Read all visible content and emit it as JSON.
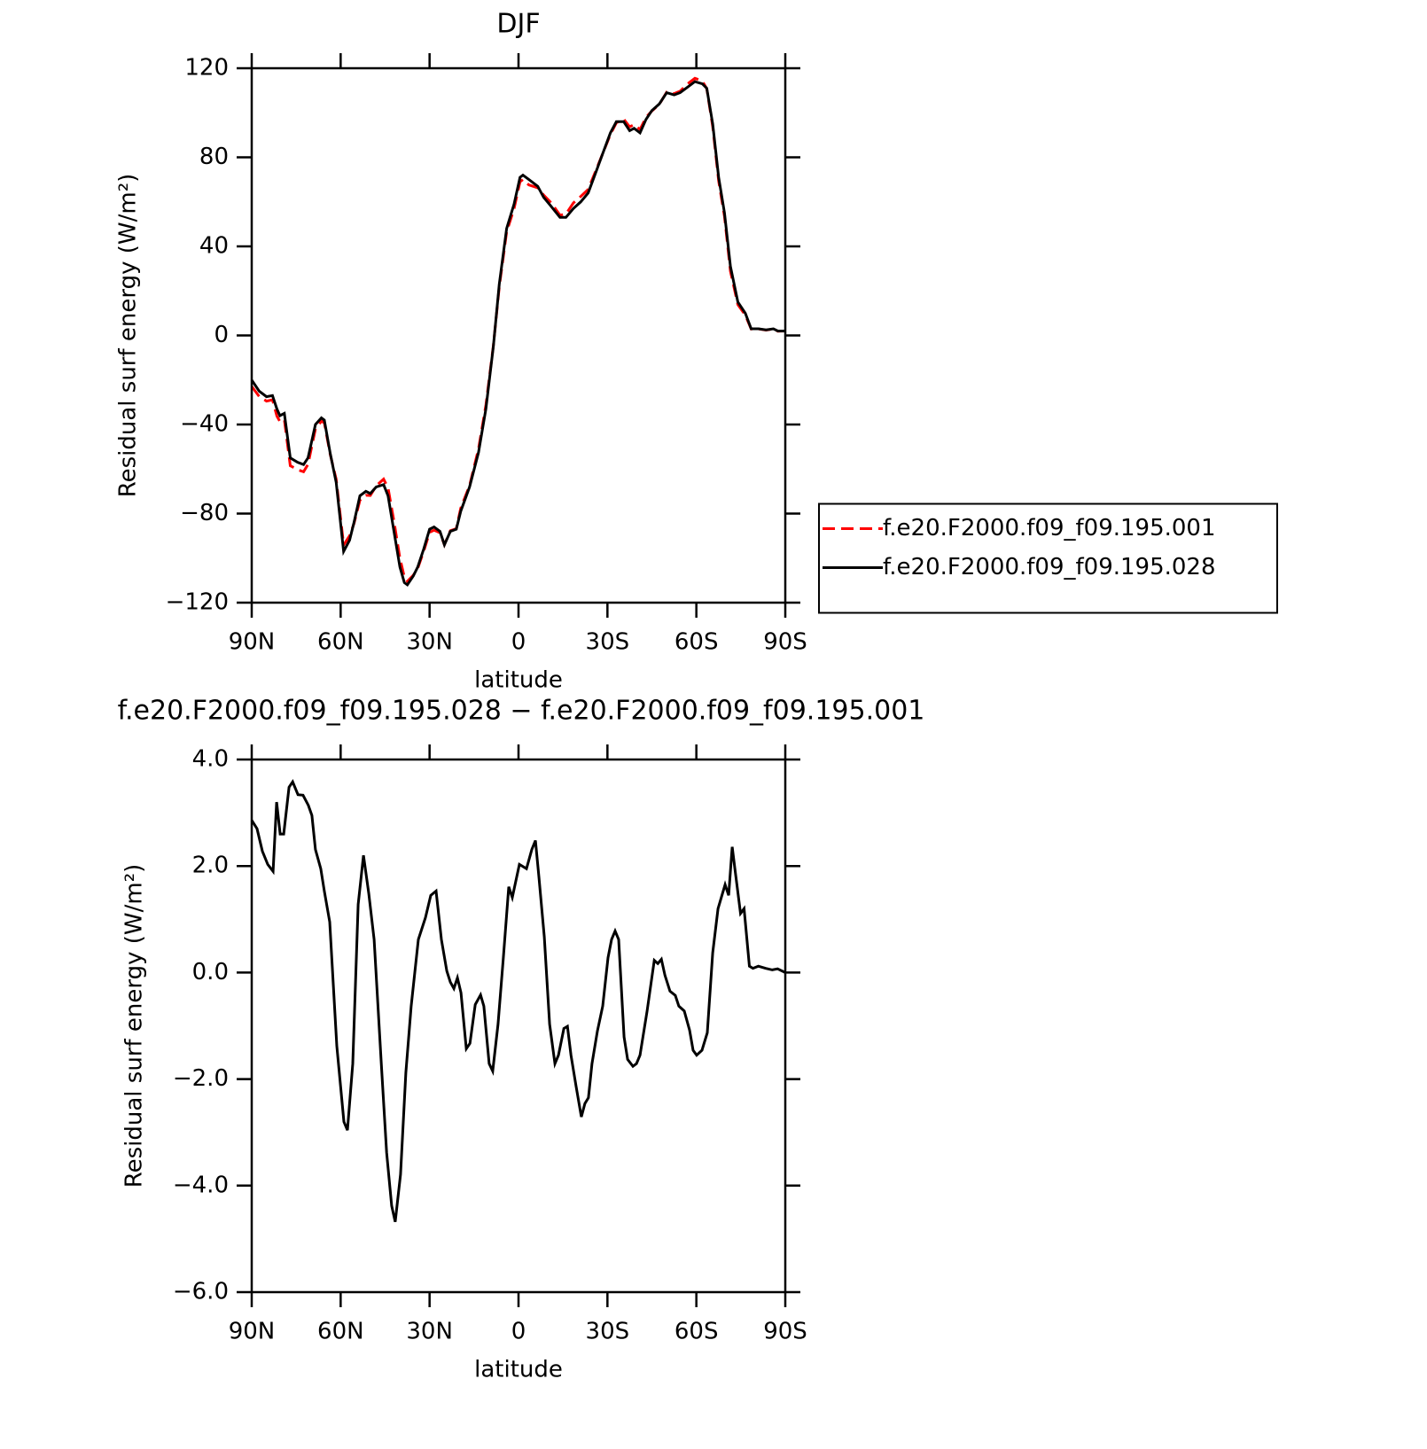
{
  "chart_data": [
    {
      "type": "line",
      "title": "DJF",
      "x_label": "latitude",
      "y_label": "Residual surf energy (W/m²)",
      "xlim": [
        90,
        -90
      ],
      "xticks": [
        {
          "value": 90,
          "label": "90N"
        },
        {
          "value": 60,
          "label": "60N"
        },
        {
          "value": 30,
          "label": "30N"
        },
        {
          "value": 0,
          "label": "0"
        },
        {
          "value": -30,
          "label": "30S"
        },
        {
          "value": -60,
          "label": "60S"
        },
        {
          "value": -90,
          "label": "90S"
        }
      ],
      "ylim": [
        -120,
        120
      ],
      "yticks": [
        {
          "value": -120,
          "label": "−120"
        },
        {
          "value": -80,
          "label": "−80"
        },
        {
          "value": -40,
          "label": "−40"
        },
        0,
        40,
        80,
        120
      ],
      "legend": "right",
      "x": [
        90,
        87.5,
        85,
        83,
        81.5,
        80.5,
        79,
        77,
        74.5,
        72.5,
        71,
        68.5,
        66.5,
        65.5,
        63.5,
        61.5,
        59,
        57,
        55.5,
        53.5,
        51.5,
        50,
        48,
        45.5,
        44,
        42,
        40,
        38.5,
        37.5,
        35.5,
        34,
        32,
        30,
        28.5,
        26.5,
        25,
        23,
        21,
        19.5,
        16.5,
        13.5,
        11,
        8.5,
        6.5,
        4,
        1.5,
        -0.5,
        -1.5,
        -3.5,
        -6.5,
        -8.5,
        -11,
        -14,
        -16,
        -18.5,
        -21,
        -23.5,
        -26,
        -28.5,
        -31,
        -33,
        -35.5,
        -37.5,
        -39,
        -41,
        -43,
        -45,
        -47.5,
        -50,
        -52.5,
        -54.5,
        -57,
        -59.5,
        -62,
        -63.5,
        -65.5,
        -67.5,
        -69.5,
        -71.5,
        -74,
        -76.5,
        -78.5,
        -81,
        -83.5,
        -86,
        -87.5,
        -90
      ],
      "series": [
        {
          "name": "f.e20.F2000.f09_f09.195.001",
          "color": "#ff0000",
          "dashed": true,
          "values": [
            -22.9,
            -27.4,
            -29.5,
            -28.9,
            -36.2,
            -38.6,
            -37.8,
            -58.5,
            -60.3,
            -61.2,
            -57.9,
            -42,
            -38.5,
            -39.2,
            -53.5,
            -64.6,
            -94.1,
            -90,
            -84.5,
            -74,
            -71.8,
            -71.9,
            -67.5,
            -64.5,
            -68.4,
            -83.5,
            -100,
            -108.5,
            -110.4,
            -107.7,
            -104.6,
            -97,
            -88.4,
            -87.5,
            -88.6,
            -94,
            -87.7,
            -86.8,
            -77.6,
            -67.4,
            -50.9,
            -31.3,
            -4.7,
            21.8,
            46.5,
            57,
            69,
            70,
            67.6,
            66.3,
            63,
            59.6,
            54,
            54.5,
            59.5,
            62.4,
            65.6,
            73.8,
            82,
            90.3,
            95.5,
            97.2,
            93.7,
            94.7,
            92.5,
            97.9,
            100.8,
            103.8,
            109.3,
            108.6,
            109.7,
            112.9,
            115.5,
            114.3,
            110.8,
            93.8,
            69.4,
            53.4,
            28.8,
            13.8,
            9.1,
            2.9,
            2.9,
            2.4,
            2.9,
            1.9,
            2.0
          ]
        },
        {
          "name": "f.e20.F2000.f09_f09.195.028",
          "color": "#000000",
          "dashed": false,
          "values": [
            -20,
            -25,
            -27.5,
            -27,
            -33,
            -36,
            -35,
            -55,
            -57,
            -58,
            -55,
            -40,
            -37,
            -38,
            -53,
            -66,
            -97,
            -92,
            -84,
            -72,
            -70,
            -71,
            -68,
            -67,
            -72,
            -88,
            -104,
            -111,
            -112,
            -108,
            -104,
            -96,
            -87,
            -86,
            -88,
            -94,
            -88,
            -87,
            -79,
            -68,
            -52.5,
            -33,
            -5,
            23,
            48,
            59,
            71,
            72,
            70,
            67,
            62,
            58,
            53,
            53,
            57,
            60,
            64,
            73,
            82,
            91,
            96,
            96,
            92,
            93,
            91,
            97,
            101,
            104,
            109,
            108,
            109,
            111.5,
            114,
            113,
            111,
            95,
            71,
            55,
            31,
            15,
            10,
            3,
            3,
            2.5,
            3,
            2,
            2
          ]
        }
      ]
    },
    {
      "type": "line",
      "title": "f.e20.F2000.f09_f09.195.028 − f.e20.F2000.f09_f09.195.001",
      "x_label": "latitude",
      "y_label": "Residual surf energy (W/m²)",
      "xlim": [
        90,
        -90
      ],
      "xticks": [
        {
          "value": 90,
          "label": "90N"
        },
        {
          "value": 60,
          "label": "60N"
        },
        {
          "value": 30,
          "label": "30N"
        },
        {
          "value": 0,
          "label": "0"
        },
        {
          "value": -30,
          "label": "30S"
        },
        {
          "value": -60,
          "label": "60S"
        },
        {
          "value": -90,
          "label": "90S"
        }
      ],
      "ylim": [
        -6,
        4
      ],
      "yticks": [
        {
          "value": -6,
          "label": "−6.0"
        },
        {
          "value": -4,
          "label": "−4.0"
        },
        {
          "value": -2,
          "label": "−2.0"
        },
        {
          "value": 0,
          "label": "0.0"
        },
        {
          "value": 2,
          "label": "2.0"
        },
        {
          "value": 4,
          "label": "4.0"
        }
      ],
      "color": "#000000",
      "x": [
        90,
        88.2,
        86.4,
        84.6,
        82.8,
        81.6,
        80.4,
        79.2,
        77.4,
        76.2,
        74.4,
        72.7,
        70.9,
        69.7,
        68.5,
        66.7,
        65.5,
        63.7,
        61.3,
        58.9,
        57.7,
        55.9,
        54.1,
        52.3,
        50.5,
        48.7,
        46.3,
        44.5,
        42.8,
        41.6,
        39.8,
        38.0,
        36.2,
        33.8,
        31.4,
        29.6,
        27.8,
        26.0,
        24.2,
        23.0,
        21.8,
        20.6,
        19.4,
        17.6,
        16.4,
        14.6,
        12.8,
        11.7,
        9.9,
        8.7,
        6.9,
        5.1,
        3.3,
        2.1,
        -0.3,
        -2.7,
        -4.5,
        -5.7,
        -6.9,
        -8.7,
        -10.5,
        -12.3,
        -13.5,
        -15.3,
        -16.5,
        -17.7,
        -19.4,
        -21.2,
        -22.4,
        -23.6,
        -24.8,
        -26.6,
        -28.4,
        -30.2,
        -31.4,
        -32.6,
        -33.8,
        -35.6,
        -36.8,
        -38.6,
        -39.8,
        -41.0,
        -43.4,
        -45.8,
        -47.0,
        -48.2,
        -49.4,
        -51.1,
        -52.9,
        -54.1,
        -55.9,
        -57.7,
        -58.9,
        -60.1,
        -61.9,
        -63.7,
        -65.5,
        -67.3,
        -69.7,
        -70.9,
        -72.1,
        -73.1,
        -74.9,
        -76.1,
        -77.9,
        -79.1,
        -80.9,
        -83.3,
        -85.6,
        -87.4,
        -90
      ],
      "values": [
        2.86,
        2.7,
        2.28,
        2.03,
        1.9,
        3.2,
        2.6,
        2.6,
        3.48,
        3.58,
        3.34,
        3.33,
        3.14,
        2.95,
        2.31,
        1.95,
        1.53,
        0.95,
        -1.38,
        -2.8,
        -2.96,
        -1.71,
        1.28,
        2.2,
        1.48,
        0.62,
        -1.71,
        -3.38,
        -4.38,
        -4.68,
        -3.79,
        -1.88,
        -0.63,
        0.62,
        1.03,
        1.45,
        1.53,
        0.62,
        0.03,
        -0.18,
        -0.3,
        -0.1,
        -0.38,
        -1.43,
        -1.33,
        -0.6,
        -0.42,
        -0.63,
        -1.71,
        -1.85,
        -0.97,
        0.28,
        1.61,
        1.41,
        2.03,
        1.95,
        2.31,
        2.48,
        1.78,
        0.67,
        -0.97,
        -1.71,
        -1.55,
        -1.05,
        -1.01,
        -1.55,
        -2.13,
        -2.71,
        -2.46,
        -2.35,
        -1.71,
        -1.1,
        -0.63,
        0.28,
        0.62,
        0.78,
        0.62,
        -1.21,
        -1.63,
        -1.76,
        -1.71,
        -1.55,
        -0.72,
        0.23,
        0.17,
        0.25,
        -0.05,
        -0.35,
        -0.43,
        -0.63,
        -0.72,
        -1.08,
        -1.46,
        -1.55,
        -1.46,
        -1.13,
        0.37,
        1.2,
        1.65,
        1.45,
        2.36,
        1.9,
        1.11,
        1.2,
        0.12,
        0.08,
        0.12,
        0.08,
        0.05,
        0.07,
        0.0
      ]
    }
  ]
}
